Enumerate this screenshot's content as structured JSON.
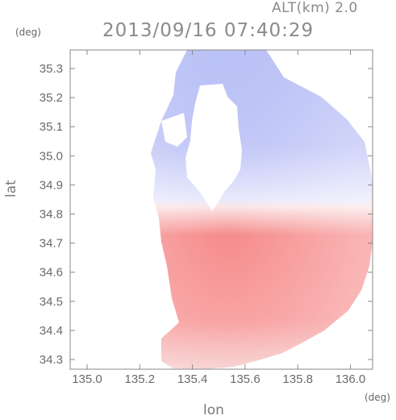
{
  "header": {
    "altitude_label": "ALT(km) 2.0",
    "timestamp": "2013/09/16 07:40:29"
  },
  "axes": {
    "x_label": "lon",
    "y_label": "lat",
    "x_unit": "(deg)",
    "y_unit": "(deg)",
    "x_ticks": [
      "135.0",
      "135.2",
      "135.4",
      "135.6",
      "135.8",
      "136.0"
    ],
    "y_ticks": [
      "35.3",
      "35.2",
      "35.1",
      "35.0",
      "34.9",
      "34.8",
      "34.7",
      "34.6",
      "34.5",
      "34.4",
      "34.3"
    ]
  },
  "colors": {
    "approaching": "#8a96ee",
    "receding": "#f47c7c",
    "frame": "#888888"
  }
}
